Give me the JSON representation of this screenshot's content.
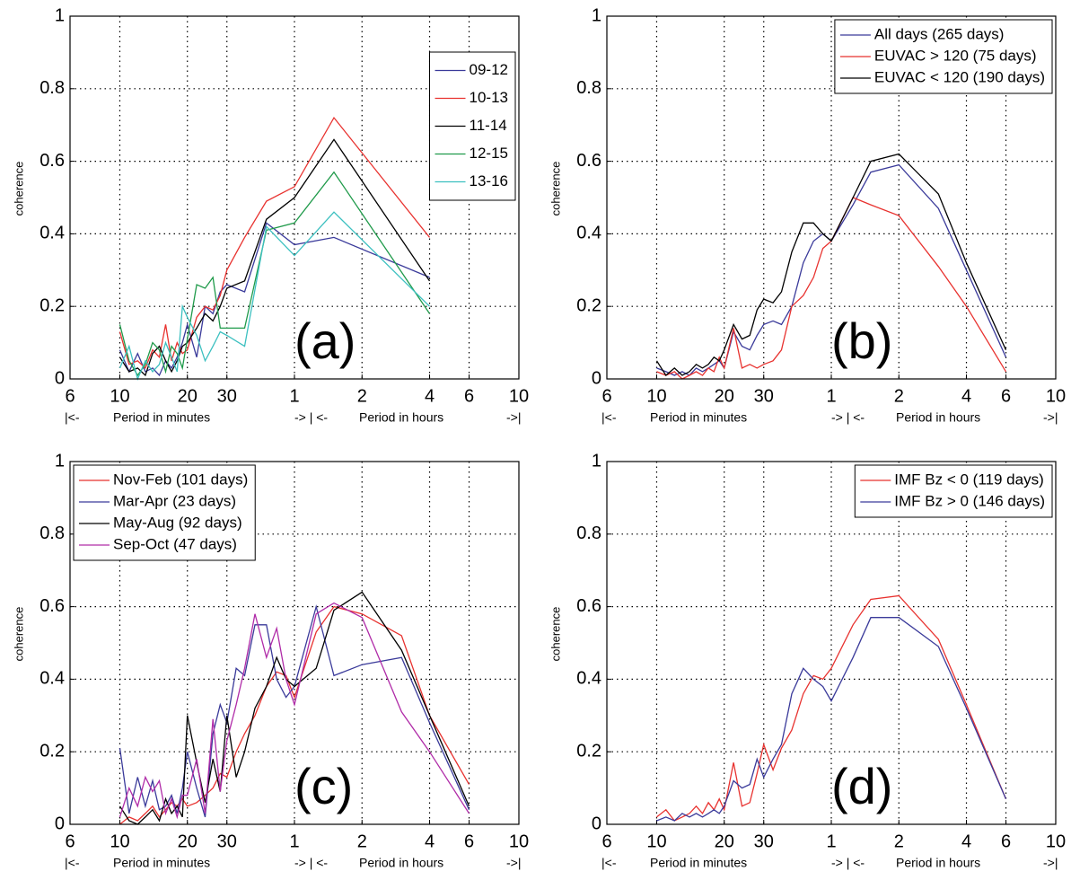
{
  "chart_data": [
    {
      "type": "line",
      "annotation": "(a)",
      "ylabel": "coherence",
      "axis_notes": [
        "|<-",
        "Period in minutes",
        "-> | <-",
        "Period in hours",
        "->|"
      ],
      "xscale": "log",
      "xlim": [
        6,
        600
      ],
      "ylim": [
        0,
        1
      ],
      "grid": true,
      "legend": "upper right",
      "xticks": [
        6,
        10,
        20,
        30,
        {
          "value": 60,
          "label": "1"
        },
        {
          "value": 120,
          "label": "2"
        },
        {
          "value": 240,
          "label": "4"
        },
        {
          "value": 360,
          "label": "6"
        },
        {
          "value": 600,
          "label": "10"
        }
      ],
      "yticks": [
        0,
        0.2,
        0.4,
        0.6,
        0.8,
        1
      ],
      "x": [
        10,
        11,
        12,
        13,
        14,
        15,
        16,
        17,
        18,
        19,
        20,
        22,
        24,
        26,
        28,
        30,
        36,
        45,
        60,
        90,
        240
      ],
      "series": [
        {
          "name": "09-12",
          "color": "#3a3a9a",
          "values": [
            0.08,
            0.02,
            0.07,
            0.02,
            0.03,
            0.01,
            0.05,
            0.03,
            0.06,
            0.1,
            0.15,
            0.06,
            0.2,
            0.18,
            0.24,
            0.26,
            0.24,
            0.43,
            0.37,
            0.39,
            0.28
          ]
        },
        {
          "name": "10-13",
          "color": "#e8322f",
          "values": [
            0.13,
            0.04,
            0.05,
            0.03,
            0.08,
            0.06,
            0.15,
            0.05,
            0.1,
            0.07,
            0.08,
            0.17,
            0.2,
            0.19,
            0.23,
            0.3,
            0.39,
            0.49,
            0.53,
            0.72,
            0.39
          ]
        },
        {
          "name": "11-14",
          "color": "#000000",
          "values": [
            0.06,
            0.02,
            0.03,
            0.01,
            0.07,
            0.09,
            0.05,
            0.02,
            0.05,
            0.09,
            0.1,
            0.14,
            0.18,
            0.16,
            0.2,
            0.25,
            0.27,
            0.44,
            0.5,
            0.66,
            0.27
          ]
        },
        {
          "name": "12-15",
          "color": "#1f9a4a",
          "values": [
            0.15,
            0.05,
            0.01,
            0.04,
            0.1,
            0.08,
            0.02,
            0.09,
            0.07,
            0.03,
            0.11,
            0.26,
            0.25,
            0.28,
            0.14,
            0.14,
            0.14,
            0.41,
            0.43,
            0.57,
            0.18
          ]
        },
        {
          "name": "13-16",
          "color": "#3cc0c0",
          "values": [
            0.03,
            0.09,
            0.0,
            0.05,
            0.02,
            0.04,
            0.1,
            0.06,
            0.02,
            0.2,
            0.17,
            0.12,
            0.05,
            0.09,
            0.13,
            0.12,
            0.09,
            0.42,
            0.34,
            0.46,
            0.2
          ]
        }
      ]
    },
    {
      "type": "line",
      "annotation": "(b)",
      "ylabel": "coherence",
      "axis_notes": [
        "|<-",
        "Period in minutes",
        "-> | <-",
        "Period in hours",
        "->|"
      ],
      "xscale": "log",
      "xlim": [
        6,
        600
      ],
      "ylim": [
        0,
        1
      ],
      "grid": true,
      "legend": "upper right",
      "xticks": [
        6,
        10,
        20,
        30,
        {
          "value": 60,
          "label": "1"
        },
        {
          "value": 120,
          "label": "2"
        },
        {
          "value": 240,
          "label": "4"
        },
        {
          "value": 360,
          "label": "6"
        },
        {
          "value": 600,
          "label": "10"
        }
      ],
      "yticks": [
        0,
        0.2,
        0.4,
        0.6,
        0.8,
        1
      ],
      "x": [
        10,
        11,
        12,
        13,
        14,
        15,
        16,
        17,
        18,
        19,
        20,
        22,
        24,
        26,
        28,
        30,
        33,
        36,
        40,
        45,
        50,
        55,
        60,
        75,
        90,
        120,
        180,
        240,
        360
      ],
      "series": [
        {
          "name": "All days (265 days)",
          "color": "#3a3a9a",
          "values": [
            0.03,
            0.02,
            0.01,
            0.02,
            0.01,
            0.03,
            0.02,
            0.03,
            0.04,
            0.05,
            0.03,
            0.13,
            0.09,
            0.08,
            0.12,
            0.15,
            0.16,
            0.15,
            0.2,
            0.32,
            0.38,
            0.4,
            0.38,
            0.48,
            0.57,
            0.59,
            0.47,
            0.3,
            0.06
          ]
        },
        {
          "name": "EUVAC > 120 (75 days)",
          "color": "#e8322f",
          "values": [
            0.02,
            0.01,
            0.02,
            0.0,
            0.01,
            0.02,
            0.01,
            0.03,
            0.02,
            0.06,
            0.03,
            0.14,
            0.03,
            0.04,
            0.03,
            0.04,
            0.05,
            0.08,
            0.2,
            0.23,
            0.28,
            0.36,
            0.38,
            0.5,
            0.48,
            0.45,
            0.31,
            0.2,
            0.02
          ]
        },
        {
          "name": "EUVAC < 120 (190 days)",
          "color": "#000000",
          "values": [
            0.05,
            0.01,
            0.03,
            0.01,
            0.02,
            0.04,
            0.03,
            0.04,
            0.06,
            0.05,
            0.08,
            0.15,
            0.11,
            0.12,
            0.19,
            0.22,
            0.21,
            0.24,
            0.35,
            0.43,
            0.43,
            0.4,
            0.38,
            0.5,
            0.6,
            0.62,
            0.51,
            0.32,
            0.08
          ]
        }
      ]
    },
    {
      "type": "line",
      "annotation": "(c)",
      "ylabel": "coherence",
      "axis_notes": [
        "|<-",
        "Period in minutes",
        "-> | <-",
        "Period in hours",
        "->|"
      ],
      "xscale": "log",
      "xlim": [
        6,
        600
      ],
      "ylim": [
        0,
        1
      ],
      "grid": true,
      "legend": "upper left",
      "xticks": [
        6,
        10,
        20,
        30,
        {
          "value": 60,
          "label": "1"
        },
        {
          "value": 120,
          "label": "2"
        },
        {
          "value": 240,
          "label": "4"
        },
        {
          "value": 360,
          "label": "6"
        },
        {
          "value": 600,
          "label": "10"
        }
      ],
      "yticks": [
        0,
        0.2,
        0.4,
        0.6,
        0.8,
        1
      ],
      "x": [
        10,
        11,
        12,
        13,
        14,
        15,
        16,
        17,
        18,
        19,
        20,
        22,
        24,
        26,
        28,
        30,
        33,
        36,
        40,
        45,
        50,
        55,
        60,
        75,
        90,
        120,
        180,
        240,
        360
      ],
      "series": [
        {
          "name": "Nov-Feb (101 days)",
          "color": "#e8322f",
          "values": [
            0,
            0.02,
            0.01,
            0.03,
            0.05,
            0.02,
            0.04,
            0.06,
            0.05,
            0.07,
            0.05,
            0.06,
            0.08,
            0.1,
            0.14,
            0.13,
            0.2,
            0.25,
            0.3,
            0.38,
            0.42,
            0.41,
            0.35,
            0.53,
            0.6,
            0.58,
            0.52,
            0.3,
            0.11
          ]
        },
        {
          "name": "Mar-Apr (23 days)",
          "color": "#3a3a9a",
          "values": [
            0.21,
            0.03,
            0.13,
            0.05,
            0.12,
            0.04,
            0.05,
            0.08,
            0.03,
            0.1,
            0.2,
            0.1,
            0.02,
            0.25,
            0.33,
            0.28,
            0.43,
            0.41,
            0.55,
            0.55,
            0.4,
            0.35,
            0.38,
            0.6,
            0.41,
            0.44,
            0.46,
            0.28,
            0.04
          ]
        },
        {
          "name": "May-Aug (92 days)",
          "color": "#000000",
          "values": [
            0.05,
            0.01,
            0.0,
            0.02,
            0.04,
            0.01,
            0.07,
            0.03,
            0.05,
            0.02,
            0.3,
            0.17,
            0.06,
            0.18,
            0.09,
            0.3,
            0.13,
            0.2,
            0.32,
            0.38,
            0.46,
            0.4,
            0.38,
            0.43,
            0.59,
            0.64,
            0.48,
            0.3,
            0.05
          ]
        },
        {
          "name": "Sep-Oct (47 days)",
          "color": "#b02ca8",
          "values": [
            0.02,
            0.1,
            0.05,
            0.13,
            0.09,
            0.12,
            0.03,
            0.07,
            0.02,
            0.08,
            0.08,
            0.18,
            0.03,
            0.29,
            0.09,
            0.23,
            0.33,
            0.43,
            0.58,
            0.46,
            0.54,
            0.4,
            0.33,
            0.58,
            0.61,
            0.57,
            0.31,
            0.2,
            0.03
          ]
        }
      ]
    },
    {
      "type": "line",
      "annotation": "(d)",
      "ylabel": "coherence",
      "axis_notes": [
        "|<-",
        "Period in minutes",
        "-> | <-",
        "Period in hours",
        "->|"
      ],
      "xscale": "log",
      "xlim": [
        6,
        600
      ],
      "ylim": [
        0,
        1
      ],
      "grid": true,
      "legend": "upper right",
      "xticks": [
        6,
        10,
        20,
        30,
        {
          "value": 60,
          "label": "1"
        },
        {
          "value": 120,
          "label": "2"
        },
        {
          "value": 240,
          "label": "4"
        },
        {
          "value": 360,
          "label": "6"
        },
        {
          "value": 600,
          "label": "10"
        }
      ],
      "yticks": [
        0,
        0.2,
        0.4,
        0.6,
        0.8,
        1
      ],
      "x": [
        10,
        11,
        12,
        13,
        14,
        15,
        16,
        17,
        18,
        19,
        20,
        22,
        24,
        26,
        28,
        30,
        33,
        36,
        40,
        45,
        50,
        55,
        60,
        75,
        90,
        120,
        180,
        240,
        360
      ],
      "series": [
        {
          "name": "IMF Bz < 0 (119 days)",
          "color": "#e8322f",
          "values": [
            0.02,
            0.04,
            0.01,
            0.02,
            0.03,
            0.05,
            0.03,
            0.06,
            0.04,
            0.07,
            0.04,
            0.17,
            0.05,
            0.06,
            0.14,
            0.22,
            0.15,
            0.21,
            0.26,
            0.36,
            0.41,
            0.4,
            0.43,
            0.55,
            0.62,
            0.63,
            0.51,
            0.33,
            0.07
          ]
        },
        {
          "name": "IMF Bz > 0 (146 days)",
          "color": "#3a3a9a",
          "values": [
            0.01,
            0.02,
            0.01,
            0.03,
            0.02,
            0.03,
            0.02,
            0.03,
            0.04,
            0.03,
            0.05,
            0.12,
            0.1,
            0.11,
            0.18,
            0.13,
            0.18,
            0.22,
            0.36,
            0.43,
            0.4,
            0.38,
            0.34,
            0.46,
            0.57,
            0.57,
            0.49,
            0.32,
            0.07
          ]
        }
      ]
    }
  ]
}
